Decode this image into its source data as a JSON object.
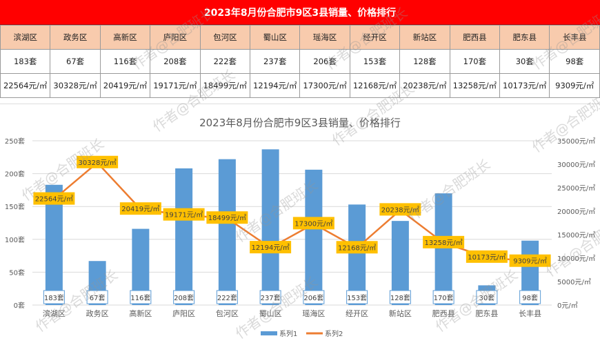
{
  "table": {
    "title": "2023年8月份合肥市9区3县销量、价格排行",
    "districts": [
      "滨湖区",
      "政务区",
      "高新区",
      "庐阳区",
      "包河区",
      "蜀山区",
      "瑶海区",
      "经开区",
      "新站区",
      "肥西县",
      "肥东县",
      "长丰县"
    ],
    "sales": [
      "183套",
      "67套",
      "116套",
      "208套",
      "222套",
      "237套",
      "206套",
      "153套",
      "128套",
      "170套",
      "30套",
      "98套"
    ],
    "prices": [
      "22564元/㎡",
      "30328元/㎡",
      "20419元/㎡",
      "19171元/㎡",
      "18499元/㎡",
      "12194元/㎡",
      "17300元/㎡",
      "12168元/㎡",
      "20238元/㎡",
      "13258元/㎡",
      "10173元/㎡",
      "9309元/㎡"
    ]
  },
  "watermark": "作者@合肥班长",
  "chart_data": {
    "type": "bar+line",
    "title": "2023年8月份合肥市9区3县销量、价格排行",
    "categories": [
      "滨湖区",
      "政务区",
      "高新区",
      "庐阳区",
      "包河区",
      "蜀山区",
      "瑶海区",
      "经开区",
      "新站区",
      "肥西县",
      "肥东县",
      "长丰县"
    ],
    "series": [
      {
        "name": "系列1",
        "type": "bar",
        "axis": "left",
        "color": "#5b9bd5",
        "values": [
          183,
          67,
          116,
          208,
          222,
          237,
          206,
          153,
          128,
          170,
          30,
          98
        ],
        "labels": [
          "183套",
          "67套",
          "116套",
          "208套",
          "222套",
          "237套",
          "206套",
          "153套",
          "128套",
          "170套",
          "30套",
          "98套"
        ]
      },
      {
        "name": "系列2",
        "type": "line",
        "axis": "right",
        "color": "#ed7d31",
        "values": [
          22564,
          30328,
          20419,
          19171,
          18499,
          12194,
          17300,
          12168,
          20238,
          13258,
          10173,
          9309
        ],
        "labels": [
          "22564元/㎡",
          "30328元/㎡",
          "20419元/㎡",
          "19171元/㎡",
          "18499元/㎡",
          "12194元/㎡",
          "17300元/㎡",
          "12168元/㎡",
          "20238元/㎡",
          "13258元/㎡",
          "10173元/㎡",
          "9309元/㎡"
        ]
      }
    ],
    "left_axis": {
      "ylim": [
        0,
        250
      ],
      "ticks": [
        "0套",
        "50套",
        "100套",
        "150套",
        "200套",
        "250套"
      ]
    },
    "right_axis": {
      "ylim": [
        0,
        35000
      ],
      "ticks": [
        "0元/㎡",
        "5000元/㎡",
        "10000元/㎡",
        "15000元/㎡",
        "20000元/㎡",
        "25000元/㎡",
        "30000元/㎡",
        "35000元/㎡"
      ]
    },
    "grid": true,
    "legend": "bottom",
    "label_box_color": "#ffc000"
  }
}
